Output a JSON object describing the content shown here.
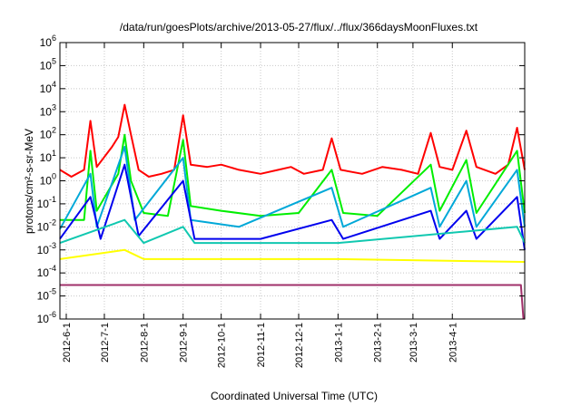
{
  "chart_data": {
    "type": "line",
    "title": "/data/run/goesPlots/archive/2013-05-27/flux/../flux/366daysMoonFluxes.txt",
    "xlabel": "Coordinated Universal Time (UTC)",
    "ylabel": "protons/cm²-s-sr-MeV",
    "y_scale": "log",
    "ylim": [
      1e-06,
      1000000.0
    ],
    "xlim": [
      "2012-05-27",
      "2013-05-28"
    ],
    "grid": true,
    "legend": "none",
    "y_ticks": [
      {
        "exp": "-6",
        "value": 1e-06
      },
      {
        "exp": "-5",
        "value": 1e-05
      },
      {
        "exp": "-4",
        "value": 0.0001
      },
      {
        "exp": "-3",
        "value": 0.001
      },
      {
        "exp": "-2",
        "value": 0.01
      },
      {
        "exp": "-1",
        "value": 0.1
      },
      {
        "exp": "0",
        "value": 1
      },
      {
        "exp": "1",
        "value": 10
      },
      {
        "exp": "2",
        "value": 100
      },
      {
        "exp": "3",
        "value": 1000
      },
      {
        "exp": "4",
        "value": 10000
      },
      {
        "exp": "5",
        "value": 100000
      },
      {
        "exp": "6",
        "value": 1000000
      }
    ],
    "x_ticks": [
      {
        "label": "2012-6-1",
        "date": "2012-06-01"
      },
      {
        "label": "2012-7-1",
        "date": "2012-07-01"
      },
      {
        "label": "2012-8-1",
        "date": "2012-08-01"
      },
      {
        "label": "2012-9-1",
        "date": "2012-09-01"
      },
      {
        "label": "2012-10-1",
        "date": "2012-10-01"
      },
      {
        "label": "2012-11-1",
        "date": "2012-11-01"
      },
      {
        "label": "2012-12-1",
        "date": "2012-12-01"
      },
      {
        "label": "2013-1-1",
        "date": "2013-01-01"
      },
      {
        "label": "2013-2-1",
        "date": "2013-02-01"
      },
      {
        "label": "2013-3-1",
        "date": "2013-03-01"
      },
      {
        "label": "2013-4-1",
        "date": "2013-04-01"
      }
    ],
    "series": [
      {
        "color": "#ff0000",
        "values": [
          {
            "date": "2012-05-27",
            "y": 3
          },
          {
            "date": "2012-06-05",
            "y": 1.5
          },
          {
            "date": "2012-06-15",
            "y": 3
          },
          {
            "date": "2012-06-20",
            "y": 400
          },
          {
            "date": "2012-06-25",
            "y": 4
          },
          {
            "date": "2012-07-07",
            "y": 30
          },
          {
            "date": "2012-07-12",
            "y": 80
          },
          {
            "date": "2012-07-17",
            "y": 2000
          },
          {
            "date": "2012-07-22",
            "y": 100
          },
          {
            "date": "2012-07-28",
            "y": 3
          },
          {
            "date": "2012-08-05",
            "y": 1.5
          },
          {
            "date": "2012-08-15",
            "y": 2
          },
          {
            "date": "2012-08-25",
            "y": 3
          },
          {
            "date": "2012-09-01",
            "y": 700
          },
          {
            "date": "2012-09-07",
            "y": 5
          },
          {
            "date": "2012-09-20",
            "y": 4
          },
          {
            "date": "2012-10-01",
            "y": 5
          },
          {
            "date": "2012-10-15",
            "y": 3
          },
          {
            "date": "2012-11-01",
            "y": 2
          },
          {
            "date": "2012-11-15",
            "y": 3
          },
          {
            "date": "2012-11-25",
            "y": 4
          },
          {
            "date": "2012-12-05",
            "y": 2
          },
          {
            "date": "2012-12-20",
            "y": 3
          },
          {
            "date": "2012-12-27",
            "y": 70
          },
          {
            "date": "2013-01-03",
            "y": 3
          },
          {
            "date": "2013-01-20",
            "y": 2
          },
          {
            "date": "2013-02-05",
            "y": 4
          },
          {
            "date": "2013-02-20",
            "y": 3
          },
          {
            "date": "2013-03-05",
            "y": 2
          },
          {
            "date": "2013-03-15",
            "y": 120
          },
          {
            "date": "2013-03-22",
            "y": 4
          },
          {
            "date": "2013-04-01",
            "y": 3
          },
          {
            "date": "2013-04-12",
            "y": 150
          },
          {
            "date": "2013-04-20",
            "y": 4
          },
          {
            "date": "2013-05-05",
            "y": 2
          },
          {
            "date": "2013-05-15",
            "y": 5
          },
          {
            "date": "2013-05-22",
            "y": 200
          },
          {
            "date": "2013-05-28",
            "y": 3
          }
        ]
      },
      {
        "color": "#00ee00",
        "values": [
          {
            "date": "2012-05-27",
            "y": 0.02
          },
          {
            "date": "2012-06-15",
            "y": 0.02
          },
          {
            "date": "2012-06-20",
            "y": 20
          },
          {
            "date": "2012-06-25",
            "y": 0.05
          },
          {
            "date": "2012-07-12",
            "y": 2
          },
          {
            "date": "2012-07-17",
            "y": 100
          },
          {
            "date": "2012-07-22",
            "y": 1
          },
          {
            "date": "2012-08-01",
            "y": 0.04
          },
          {
            "date": "2012-08-20",
            "y": 0.03
          },
          {
            "date": "2012-09-01",
            "y": 60
          },
          {
            "date": "2012-09-07",
            "y": 0.08
          },
          {
            "date": "2012-10-01",
            "y": 0.05
          },
          {
            "date": "2012-11-01",
            "y": 0.03
          },
          {
            "date": "2012-12-01",
            "y": 0.04
          },
          {
            "date": "2012-12-27",
            "y": 3
          },
          {
            "date": "2013-01-05",
            "y": 0.04
          },
          {
            "date": "2013-02-01",
            "y": 0.03
          },
          {
            "date": "2013-03-15",
            "y": 5
          },
          {
            "date": "2013-03-22",
            "y": 0.05
          },
          {
            "date": "2013-04-12",
            "y": 8
          },
          {
            "date": "2013-04-20",
            "y": 0.04
          },
          {
            "date": "2013-05-22",
            "y": 20
          },
          {
            "date": "2013-05-28",
            "y": 0.04
          }
        ]
      },
      {
        "color": "#00a8d8",
        "values": [
          {
            "date": "2012-05-27",
            "y": 0.008
          },
          {
            "date": "2012-06-20",
            "y": 2
          },
          {
            "date": "2012-06-25",
            "y": 0.01
          },
          {
            "date": "2012-07-17",
            "y": 30
          },
          {
            "date": "2012-07-25",
            "y": 0.02
          },
          {
            "date": "2012-09-01",
            "y": 10
          },
          {
            "date": "2012-09-07",
            "y": 0.02
          },
          {
            "date": "2012-10-15",
            "y": 0.01
          },
          {
            "date": "2012-12-27",
            "y": 0.5
          },
          {
            "date": "2013-01-05",
            "y": 0.01
          },
          {
            "date": "2013-03-15",
            "y": 0.5
          },
          {
            "date": "2013-03-22",
            "y": 0.01
          },
          {
            "date": "2013-04-12",
            "y": 1
          },
          {
            "date": "2013-04-20",
            "y": 0.01
          },
          {
            "date": "2013-05-22",
            "y": 3
          },
          {
            "date": "2013-05-28",
            "y": 0.01
          }
        ]
      },
      {
        "color": "#0000ee",
        "values": [
          {
            "date": "2012-05-27",
            "y": 0.003
          },
          {
            "date": "2012-06-20",
            "y": 0.2
          },
          {
            "date": "2012-06-28",
            "y": 0.003
          },
          {
            "date": "2012-07-17",
            "y": 5
          },
          {
            "date": "2012-07-28",
            "y": 0.004
          },
          {
            "date": "2012-09-01",
            "y": 1
          },
          {
            "date": "2012-09-10",
            "y": 0.003
          },
          {
            "date": "2012-11-01",
            "y": 0.003
          },
          {
            "date": "2012-12-27",
            "y": 0.02
          },
          {
            "date": "2013-01-05",
            "y": 0.003
          },
          {
            "date": "2013-03-15",
            "y": 0.05
          },
          {
            "date": "2013-03-22",
            "y": 0.003
          },
          {
            "date": "2013-04-12",
            "y": 0.05
          },
          {
            "date": "2013-04-20",
            "y": 0.003
          },
          {
            "date": "2013-05-22",
            "y": 0.2
          },
          {
            "date": "2013-05-28",
            "y": 0.001
          }
        ]
      },
      {
        "color": "#10c8b0",
        "values": [
          {
            "date": "2012-05-27",
            "y": 0.002
          },
          {
            "date": "2012-07-17",
            "y": 0.02
          },
          {
            "date": "2012-08-01",
            "y": 0.002
          },
          {
            "date": "2012-09-01",
            "y": 0.01
          },
          {
            "date": "2012-09-10",
            "y": 0.002
          },
          {
            "date": "2013-01-01",
            "y": 0.002
          },
          {
            "date": "2013-05-22",
            "y": 0.01
          },
          {
            "date": "2013-05-28",
            "y": 0.002
          }
        ]
      },
      {
        "color": "#ffff00",
        "values": [
          {
            "date": "2012-05-27",
            "y": 0.0004
          },
          {
            "date": "2012-07-17",
            "y": 0.001
          },
          {
            "date": "2012-08-01",
            "y": 0.0004
          },
          {
            "date": "2013-01-01",
            "y": 0.0004
          },
          {
            "date": "2013-05-28",
            "y": 0.0003
          }
        ]
      },
      {
        "color": "#a0306a",
        "values": [
          {
            "date": "2012-05-27",
            "y": 3e-05
          },
          {
            "date": "2012-09-01",
            "y": 3e-05
          },
          {
            "date": "2013-01-01",
            "y": 3e-05
          },
          {
            "date": "2013-05-25",
            "y": 3e-05
          },
          {
            "date": "2013-05-27",
            "y": 1e-06
          }
        ]
      }
    ]
  }
}
